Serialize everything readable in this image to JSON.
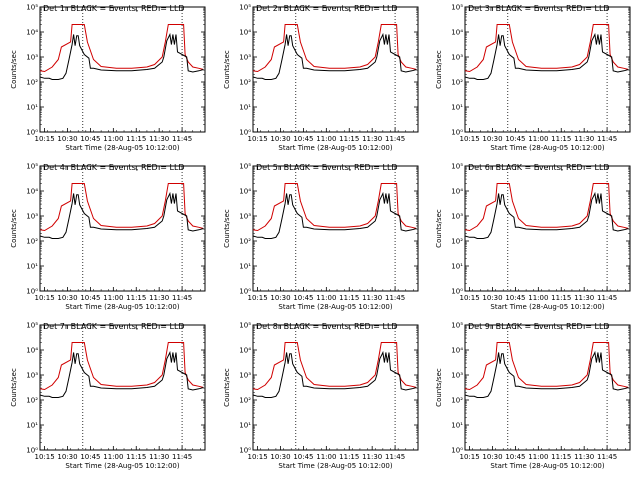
{
  "chart_data": {
    "type": "line",
    "xlabel": "Start Time (28-Aug-05 10:12:00)",
    "ylabel": "Counts/sec",
    "yscale": "log",
    "ylim_exponent": [
      0,
      5
    ],
    "ytick_labels": [
      "10⁰",
      "10¹",
      "10²",
      "10³",
      "10⁴",
      "10⁵"
    ],
    "xtick_labels": [
      "10:15",
      "10:30",
      "10:45",
      "11:00",
      "11:15",
      "11:30",
      "11:45"
    ],
    "dotted_markers_minutes": [
      28,
      93
    ],
    "series_colors": {
      "events": "#000000",
      "lld": "#d00000"
    },
    "panels": [
      {
        "title": "Det 1r BLACK = Events, RED = LLD"
      },
      {
        "title": "Det 2r BLACK = Events, RED = LLD"
      },
      {
        "title": "Det 3r BLACK = Events, RED = LLD"
      },
      {
        "title": "Det 4r BLACK = Events, RED = LLD"
      },
      {
        "title": "Det 5r BLACK = Events, RED = LLD"
      },
      {
        "title": "Det 6r BLACK = Events, RED = LLD"
      },
      {
        "title": "Det 7r BLACK = Events, RED = LLD"
      },
      {
        "title": "Det 8r BLACK = Events, RED = LLD"
      },
      {
        "title": "Det 9r BLACK = Events, RED = LLD"
      }
    ],
    "series": [
      {
        "name": "LLD",
        "color": "#d00000",
        "x_minutes": [
          0,
          3,
          8,
          12,
          14,
          20,
          21,
          23,
          24,
          26,
          29,
          31,
          35,
          40,
          50,
          60,
          70,
          75,
          80,
          82,
          84,
          85,
          87,
          94,
          95,
          97,
          100,
          104,
          107
        ],
        "y_log10": [
          2.45,
          2.42,
          2.6,
          2.9,
          3.4,
          3.6,
          4.3,
          4.3,
          4.3,
          4.3,
          4.3,
          3.6,
          2.9,
          2.62,
          2.55,
          2.55,
          2.6,
          2.7,
          3.0,
          3.6,
          4.3,
          4.3,
          4.3,
          4.3,
          3.1,
          2.8,
          2.6,
          2.55,
          2.5
        ]
      },
      {
        "name": "Events",
        "color": "#000000",
        "x_minutes": [
          0,
          3,
          6,
          8,
          12,
          15,
          17,
          19,
          21,
          22,
          23,
          24,
          25,
          26,
          29,
          32,
          33,
          35,
          40,
          50,
          60,
          70,
          75,
          80,
          81,
          83,
          85,
          86,
          87,
          88,
          89,
          90,
          93,
          96,
          97,
          100,
          104,
          107
        ],
        "y_log10": [
          2.2,
          2.15,
          2.15,
          2.1,
          2.1,
          2.15,
          2.35,
          2.9,
          3.5,
          3.9,
          3.45,
          3.85,
          3.85,
          3.45,
          3.1,
          2.95,
          2.55,
          2.55,
          2.48,
          2.45,
          2.45,
          2.5,
          2.55,
          2.8,
          3.0,
          3.65,
          3.9,
          3.5,
          3.9,
          3.5,
          3.9,
          3.2,
          3.1,
          3.0,
          2.45,
          2.4,
          2.45,
          2.5
        ]
      }
    ]
  }
}
